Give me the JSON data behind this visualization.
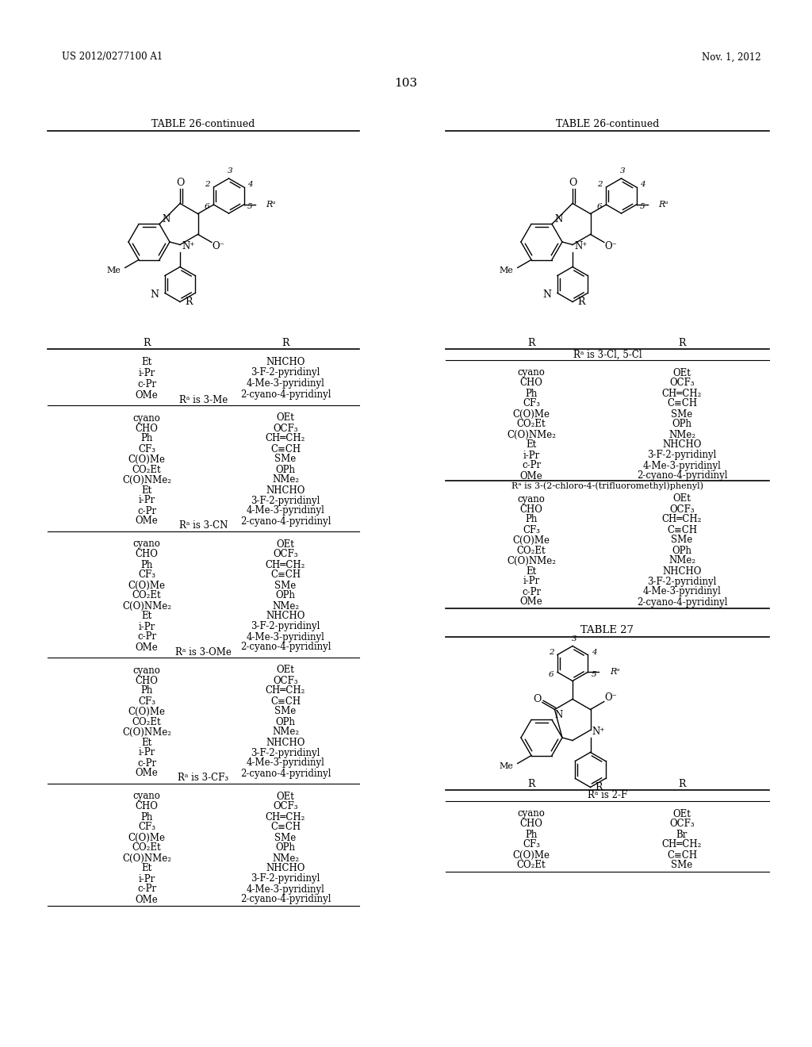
{
  "page_header_left": "US 2012/0277100 A1",
  "page_header_right": "Nov. 1, 2012",
  "page_number": "103",
  "background_color": "#ffffff",
  "left_table_title": "TABLE 26-continued",
  "right_table_title": "TABLE 26-continued",
  "table27_title": "TABLE 27",
  "left_sections": [
    {
      "header": null,
      "col1": [
        "Et",
        "i-Pr",
        "c-Pr",
        "OMe"
      ],
      "col2": [
        "NHCHO",
        "3-F-2-pyridinyl",
        "4-Me-3-pyridinyl",
        "2-cyano-4-pyridinyl"
      ]
    },
    {
      "header": "Rᵃ is 3-Me",
      "col1": [
        "cyano",
        "CHO",
        "Ph",
        "CF₃",
        "C(O)Me",
        "CO₂Et",
        "C(O)NMe₂",
        "Et",
        "i-Pr",
        "c-Pr",
        "OMe"
      ],
      "col2": [
        "OEt",
        "OCF₃",
        "CH═CH₂",
        "C≡CH",
        "SMe",
        "OPh",
        "NMe₂",
        "NHCHO",
        "3-F-2-pyridinyl",
        "4-Me-3-pyridinyl",
        "2-cyano-4-pyridinyl"
      ]
    },
    {
      "header": "Rᵃ is 3-CN",
      "col1": [
        "cyano",
        "CHO",
        "Ph",
        "CF₃",
        "C(O)Me",
        "CO₂Et",
        "C(O)NMe₂",
        "Et",
        "i-Pr",
        "c-Pr",
        "OMe"
      ],
      "col2": [
        "OEt",
        "OCF₃",
        "CH═CH₂",
        "C≡CH",
        "SMe",
        "OPh",
        "NMe₂",
        "NHCHO",
        "3-F-2-pyridinyl",
        "4-Me-3-pyridinyl",
        "2-cyano-4-pyridinyl"
      ]
    },
    {
      "header": "Rᵃ is 3-OMe",
      "col1": [
        "cyano",
        "CHO",
        "Ph",
        "CF₃",
        "C(O)Me",
        "CO₂Et",
        "C(O)NMe₂",
        "Et",
        "i-Pr",
        "c-Pr",
        "OMe"
      ],
      "col2": [
        "OEt",
        "OCF₃",
        "CH═CH₂",
        "C≡CH",
        "SMe",
        "OPh",
        "NMe₂",
        "NHCHO",
        "3-F-2-pyridinyl",
        "4-Me-3-pyridinyl",
        "2-cyano-4-pyridinyl"
      ]
    },
    {
      "header": "Rᵃ is 3-CF₃",
      "col1": [
        "cyano",
        "CHO",
        "Ph",
        "CF₃",
        "C(O)Me",
        "CO₂Et",
        "C(O)NMe₂",
        "Et",
        "i-Pr",
        "c-Pr",
        "OMe"
      ],
      "col2": [
        "OEt",
        "OCF₃",
        "CH═CH₂",
        "C≡CH",
        "SMe",
        "OPh",
        "NMe₂",
        "NHCHO",
        "3-F-2-pyridinyl",
        "4-Me-3-pyridinyl",
        "2-cyano-4-pyridinyl"
      ]
    }
  ],
  "right_sections": [
    {
      "header": "Rᵃ is 3-Cl, 5-Cl",
      "col1": [
        "cyano",
        "CHO",
        "Ph",
        "CF₃",
        "C(O)Me",
        "CO₂Et",
        "C(O)NMe₂",
        "Et",
        "i-Pr",
        "c-Pr",
        "OMe"
      ],
      "col2": [
        "OEt",
        "OCF₃",
        "CH═CH₂",
        "C≡CH",
        "SMe",
        "OPh",
        "NMe₂",
        "NHCHO",
        "3-F-2-pyridinyl",
        "4-Me-3-pyridinyl",
        "2-cyano-4-pyridinyl"
      ]
    },
    {
      "header": "Rᵃ is 3-(2-chloro-4-(trifluoromethyl)phenyl)",
      "col1": [
        "cyano",
        "CHO",
        "Ph",
        "CF₃",
        "C(O)Me",
        "CO₂Et",
        "C(O)NMe₂",
        "Et",
        "i-Pr",
        "c-Pr",
        "OMe"
      ],
      "col2": [
        "OEt",
        "OCF₃",
        "CH═CH₂",
        "C≡CH",
        "SMe",
        "OPh",
        "NMe₂",
        "NHCHO",
        "3-F-2-pyridinyl",
        "4-Me-3-pyridinyl",
        "2-cyano-4-pyridinyl"
      ]
    }
  ],
  "table27_sections": [
    {
      "header": "Rᵃ is 2-F",
      "col1": [
        "cyano",
        "CHO",
        "Ph",
        "CF₃",
        "C(O)Me",
        "CO₂Et"
      ],
      "col2": [
        "OEt",
        "OCF₃",
        "Br",
        "CH═CH₂",
        "C≡CH",
        "SMe"
      ]
    }
  ]
}
